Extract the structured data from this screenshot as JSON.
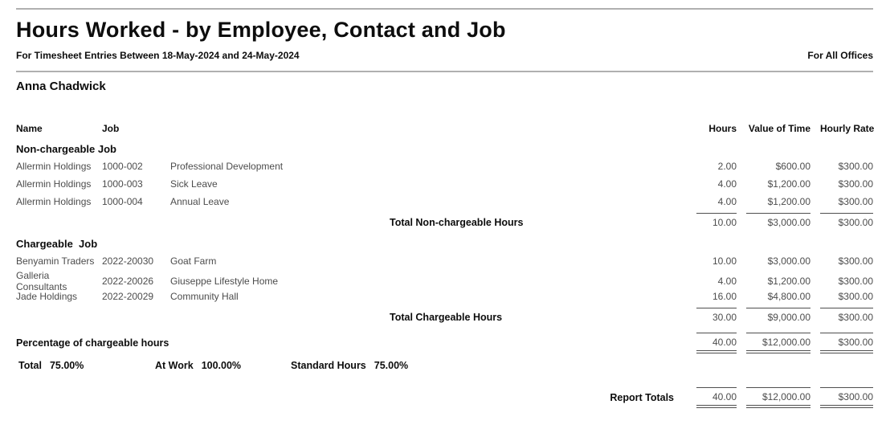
{
  "report": {
    "title": "Hours Worked - by Employee, Contact and Job",
    "subtitle": "For Timesheet Entries Between 18-May-2024 and 24-May-2024",
    "office_scope": "For All Offices",
    "employee_name": "Anna Chadwick"
  },
  "table": {
    "headers": {
      "name": "Name",
      "job": "Job",
      "hours": "Hours",
      "value_of_time": "Value of Time",
      "hourly_rate": "Hourly Rate"
    },
    "sections": [
      {
        "title": "Non-chargeable Job",
        "rows": [
          {
            "name": "Allermin Holdings",
            "job_code": "1000-002",
            "job_name": "Professional Development",
            "hours": "2.00",
            "value_of_time": "$600.00",
            "hourly_rate": "$300.00"
          },
          {
            "name": "Allermin Holdings",
            "job_code": "1000-003",
            "job_name": "Sick Leave",
            "hours": "4.00",
            "value_of_time": "$1,200.00",
            "hourly_rate": "$300.00"
          },
          {
            "name": "Allermin Holdings",
            "job_code": "1000-004",
            "job_name": "Annual Leave",
            "hours": "4.00",
            "value_of_time": "$1,200.00",
            "hourly_rate": "$300.00"
          }
        ],
        "total": {
          "label": "Total Non-chargeable Hours",
          "hours": "10.00",
          "value_of_time": "$3,000.00",
          "hourly_rate": "$300.00"
        }
      },
      {
        "title": "Chargeable  Job",
        "rows": [
          {
            "name": "Benyamin Traders",
            "job_code": "2022-20030",
            "job_name": "Goat Farm",
            "hours": "10.00",
            "value_of_time": "$3,000.00",
            "hourly_rate": "$300.00"
          },
          {
            "name": "Galleria Consultants",
            "job_code": "2022-20026",
            "job_name": "Giuseppe Lifestyle Home",
            "hours": "4.00",
            "value_of_time": "$1,200.00",
            "hourly_rate": "$300.00"
          },
          {
            "name": "Jade Holdings",
            "job_code": "2022-20029",
            "job_name": "Community Hall",
            "hours": "16.00",
            "value_of_time": "$4,800.00",
            "hourly_rate": "$300.00"
          }
        ],
        "total": {
          "label": "Total Chargeable Hours",
          "hours": "30.00",
          "value_of_time": "$9,000.00",
          "hourly_rate": "$300.00"
        }
      }
    ],
    "percentage_section": {
      "label": "Percentage of chargeable hours",
      "hours": "40.00",
      "value_of_time": "$12,000.00",
      "hourly_rate": "$300.00",
      "stats": [
        {
          "label": "Total",
          "value": "75.00%"
        },
        {
          "label": "At Work",
          "value": "100.00%"
        },
        {
          "label": "Standard Hours",
          "value": "75.00%"
        }
      ]
    },
    "report_totals": {
      "label": "Report Totals",
      "hours": "40.00",
      "value_of_time": "$12,000.00",
      "hourly_rate": "$300.00"
    }
  }
}
